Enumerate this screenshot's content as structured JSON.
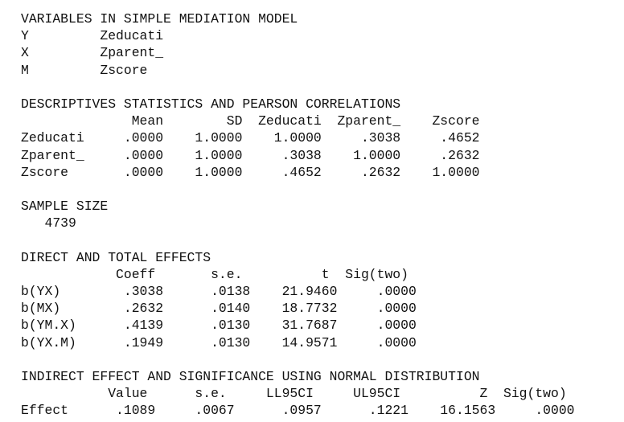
{
  "variables": {
    "header": "VARIABLES IN SIMPLE MEDIATION MODEL",
    "rows": [
      "Y         Zeducati",
      "X         Zparent_",
      "M         Zscore"
    ]
  },
  "descriptives": {
    "header": "DESCRIPTIVES STATISTICS AND PEARSON CORRELATIONS",
    "columns": "              Mean        SD  Zeducati  Zparent_    Zscore",
    "rows": [
      "Zeducati     .0000    1.0000    1.0000     .3038     .4652",
      "Zparent_     .0000    1.0000     .3038    1.0000     .2632",
      "Zscore       .0000    1.0000     .4652     .2632    1.0000"
    ]
  },
  "sample_size": {
    "header": "SAMPLE SIZE",
    "value": "   4739"
  },
  "direct_total": {
    "header": "DIRECT AND TOTAL EFFECTS",
    "columns": "            Coeff       s.e.          t  Sig(two)",
    "rows": [
      "b(YX)        .3038      .0138    21.9460     .0000",
      "b(MX)        .2632      .0140    18.7732     .0000",
      "b(YM.X)      .4139      .0130    31.7687     .0000",
      "b(YX.M)      .1949      .0130    14.9571     .0000"
    ]
  },
  "indirect": {
    "header": "INDIRECT EFFECT AND SIGNIFICANCE USING NORMAL DISTRIBUTION",
    "columns": "           Value      s.e.     LL95CI     UL95CI          Z  Sig(two)",
    "rows": [
      "Effect      .1089     .0067      .0957      .1221    16.1563     .0000"
    ]
  }
}
